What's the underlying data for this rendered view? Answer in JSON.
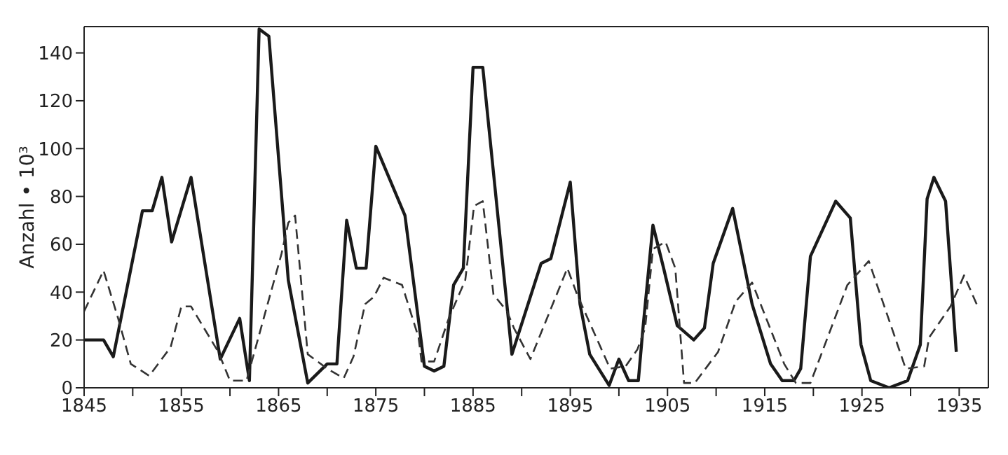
{
  "chart_data": {
    "type": "line",
    "ylabel": "Anzahl • 10³",
    "xlim": [
      1845,
      1938
    ],
    "ylim": [
      0,
      151
    ],
    "xticks": [
      1845,
      {
        "value": 1850,
        "label": null
      },
      1855,
      {
        "value": 1860,
        "label": null
      },
      1865,
      {
        "value": 1870,
        "label": null
      },
      1875,
      {
        "value": 1880,
        "label": null
      },
      1885,
      {
        "value": 1890,
        "label": null
      },
      1895,
      {
        "value": 1900,
        "label": null
      },
      1905,
      {
        "value": 1910,
        "label": null
      },
      1915,
      {
        "value": 1920,
        "label": null
      },
      1925,
      {
        "value": 1930,
        "label": null
      },
      1935
    ],
    "yticks": [
      0,
      20,
      40,
      60,
      80,
      100,
      120,
      140
    ],
    "grid": false,
    "marker": "none",
    "series": [
      {
        "color": "#1a1a1a",
        "line_style": "solid",
        "x": [
          1845,
          1847,
          1848,
          1851,
          1852,
          1853,
          1854,
          1856,
          1859,
          1861,
          1862,
          1863,
          1864,
          1866,
          1868,
          1870,
          1871,
          1872,
          1873,
          1874,
          1875,
          1878,
          1880,
          1881,
          1882,
          1883,
          1884,
          1885,
          1886,
          1889,
          1892,
          1893,
          1895,
          1896,
          1897,
          1899,
          1900,
          1901,
          1902,
          1902.5,
          1903.5,
          1904.6,
          1906,
          1907.7,
          1908.8,
          1909.7,
          1911.7,
          1913.7,
          1915.6,
          1916.8,
          1918,
          1918.7,
          1919.7,
          1922.3,
          1923.8,
          1924.9,
          1925.9,
          1927.8,
          1929.7,
          1931,
          1931.7,
          1932.4,
          1933.6,
          1934.7
        ],
        "values": [
          20,
          20,
          13,
          74,
          74,
          88,
          61,
          88,
          12,
          29,
          3,
          150,
          147,
          45,
          2,
          10,
          10,
          70,
          50,
          50,
          101,
          72,
          9,
          7,
          9,
          43,
          50,
          134,
          134,
          14,
          52,
          54,
          86,
          35,
          14,
          1,
          12,
          3,
          3,
          26,
          68,
          50,
          26,
          20,
          25,
          52,
          75,
          35,
          10,
          3,
          3,
          8,
          55,
          78,
          71,
          18,
          3,
          0,
          3,
          18,
          79,
          88,
          78,
          15
        ]
      },
      {
        "color": "#333333",
        "line_style": "dashed",
        "x": [
          1845,
          1847,
          1848.5,
          1849.8,
          1851.7,
          1853.9,
          1855,
          1856,
          1858.8,
          1860,
          1861.7,
          1865.3,
          1866,
          1866.7,
          1868,
          1870,
          1871.7,
          1872.7,
          1873.9,
          1874.8,
          1875.8,
          1877.7,
          1879.4,
          1879.7,
          1881,
          1882.5,
          1884.2,
          1885.1,
          1886,
          1887.1,
          1888.5,
          1889.2,
          1890.9,
          1894.7,
          1895.7,
          1899.1,
          1900.7,
          1901.9,
          1902.7,
          1903.5,
          1904.8,
          1905.8,
          1906.7,
          1907.8,
          1910.2,
          1912,
          1913.7,
          1917,
          1918.2,
          1919.7,
          1923.5,
          1925.7,
          1929.5,
          1931.4,
          1931.9,
          1934.1,
          1935.5,
          1936.9
        ],
        "values": [
          32,
          49,
          29,
          10,
          5,
          17,
          34,
          34,
          15,
          3,
          3,
          56,
          69,
          72,
          14,
          8,
          4,
          13,
          35,
          38,
          46,
          43,
          21,
          11,
          11,
          29,
          45,
          76,
          78,
          39,
          32,
          25,
          12,
          50,
          39,
          8,
          9,
          16,
          25,
          58,
          61,
          50,
          2,
          2,
          15,
          36,
          44,
          10,
          2,
          2,
          43,
          53,
          8,
          9,
          21,
          34,
          47,
          34
        ]
      }
    ]
  }
}
